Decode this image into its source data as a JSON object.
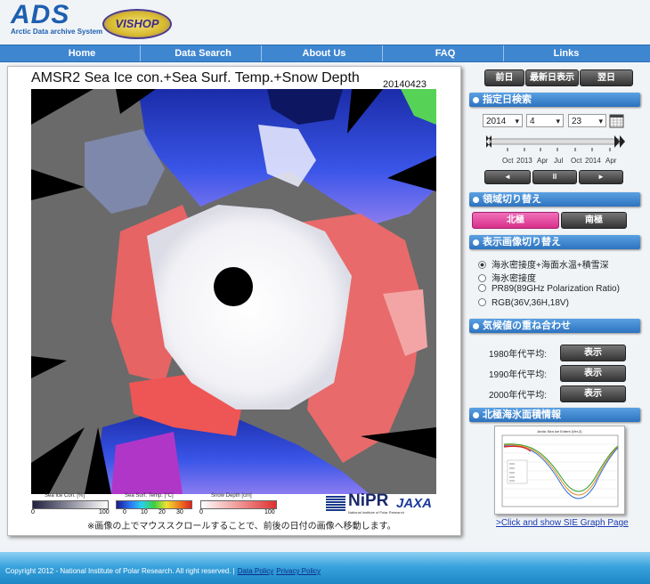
{
  "header": {
    "logo": "ADS",
    "logo_subtitle": "Arctic Data archive System",
    "partner_logo": "VISHOP"
  },
  "nav": [
    "Home",
    "Data Search",
    "About Us",
    "FAQ",
    "Links"
  ],
  "main": {
    "title": "AMSR2 Sea Ice con.+Sea Surf. Temp.+Snow Depth",
    "date": "20140423",
    "legends": [
      {
        "label": "Sea Ice Con. [%]",
        "ticks": [
          "0",
          "100"
        ]
      },
      {
        "label": "Sea Surf. Temp. [°C]",
        "ticks": [
          "0",
          "10",
          "20",
          "30"
        ]
      },
      {
        "label": "Snow Depth [cm]",
        "ticks": [
          "0",
          "100"
        ]
      }
    ],
    "logos": {
      "nipr": "NiPR",
      "nipr_subtitle": "National Institute of Polar Research",
      "jaxa": "JAXA"
    },
    "note": "※画像の上でマウススクロールすることで、前後の日付の画像へ移動します。"
  },
  "sidebar": {
    "day_buttons": [
      "前日",
      "最新日表示",
      "翌日"
    ],
    "date_search": {
      "heading": "指定日検索",
      "year": "2014",
      "month": "4",
      "day": "23",
      "timeline_labels": [
        "Oct",
        "2013",
        "Apr",
        "Jul",
        "Oct",
        "2014",
        "Apr"
      ]
    },
    "region": {
      "heading": "領域切り替え",
      "options": [
        "北極",
        "南極"
      ]
    },
    "image_type": {
      "heading": "表示画像切り替え",
      "options": [
        "海氷密接度+海面水温+積雪深",
        "海氷密接度",
        "PR89(89GHz Polarization Ratio)",
        "RGB(36V,36H,18V)"
      ]
    },
    "climatology": {
      "heading": "気候値の重ね合わせ",
      "rows": [
        {
          "label": "1980年代平均:",
          "button": "表示"
        },
        {
          "label": "1990年代平均:",
          "button": "表示"
        },
        {
          "label": "2000年代平均:",
          "button": "表示"
        }
      ]
    },
    "sea_ice": {
      "heading": "北極海氷面積情報",
      "graph_title": "Arctic Sea Ice Extent (Ver.2)",
      "link": ">Click and show SIE Graph Page"
    }
  },
  "footer": {
    "copyright": "Copyright 2012 - National Institute of Polar Research. All right reserved. |",
    "links": [
      "Data Policy",
      "Privacy Policy"
    ]
  }
}
